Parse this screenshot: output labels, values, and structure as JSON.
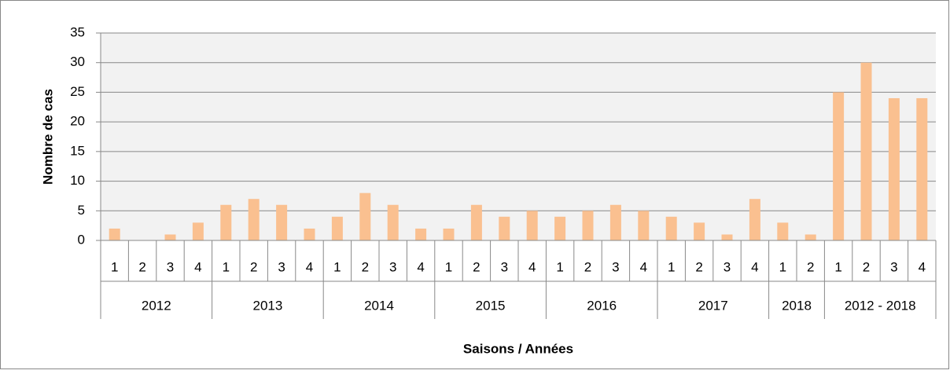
{
  "chart_data": {
    "type": "bar",
    "y_label": "Nombre de cas",
    "x_label": "Saisons / Années",
    "groups": [
      {
        "name": "2012",
        "categories": [
          "1",
          "2",
          "3",
          "4"
        ]
      },
      {
        "name": "2013",
        "categories": [
          "1",
          "2",
          "3",
          "4"
        ]
      },
      {
        "name": "2014",
        "categories": [
          "1",
          "2",
          "3",
          "4"
        ]
      },
      {
        "name": "2015",
        "categories": [
          "1",
          "2",
          "3",
          "4"
        ]
      },
      {
        "name": "2016",
        "categories": [
          "1",
          "2",
          "3",
          "4"
        ]
      },
      {
        "name": "2017",
        "categories": [
          "1",
          "2",
          "3",
          "4"
        ]
      },
      {
        "name": "2018",
        "categories": [
          "1",
          "2"
        ]
      },
      {
        "name": "2012 - 2018",
        "categories": [
          "1",
          "2",
          "3",
          "4"
        ]
      }
    ],
    "values": [
      2,
      0,
      1,
      3,
      6,
      7,
      6,
      2,
      4,
      8,
      6,
      2,
      2,
      6,
      4,
      5,
      4,
      5,
      6,
      5,
      4,
      3,
      1,
      7,
      3,
      1,
      25,
      30,
      24,
      24
    ],
    "color": "#fac090",
    "ylim": [
      0,
      35
    ],
    "yticks": [
      0,
      5,
      10,
      15,
      20,
      25,
      30,
      35
    ],
    "grid": true
  }
}
